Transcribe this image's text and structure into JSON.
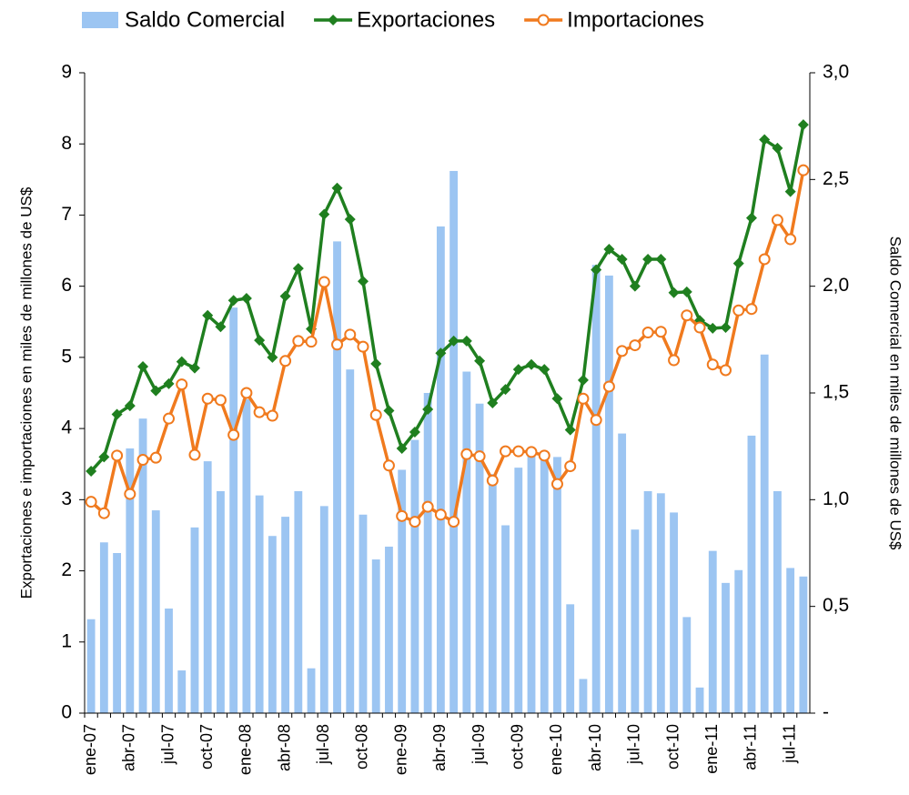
{
  "chart_data": {
    "type": "combo",
    "y_label": "Exportaciones e importaciones en miles de millones de US$",
    "y2_label": "Saldo Comercial en miles de millones de US$",
    "categories": [
      "ene-07",
      null,
      null,
      "abr-07",
      null,
      null,
      "jul-07",
      null,
      null,
      "oct-07",
      null,
      null,
      "ene-08",
      null,
      null,
      "abr-08",
      null,
      null,
      "jul-08",
      null,
      null,
      "oct-08",
      null,
      null,
      "ene-09",
      null,
      null,
      "abr-09",
      null,
      null,
      "jul-09",
      null,
      null,
      "oct-09",
      null,
      null,
      "ene-10",
      null,
      null,
      "abr-10",
      null,
      null,
      "jul-10",
      null,
      null,
      "oct-10",
      null,
      null,
      "ene-11",
      null,
      null,
      "abr-11",
      null,
      null,
      "jul-11",
      null
    ],
    "series": [
      {
        "name": "Saldo Comercial",
        "type": "bar",
        "axis": "y2",
        "color": "#9cc5f2",
        "values": [
          0.44,
          0.8,
          0.75,
          1.24,
          1.38,
          0.95,
          0.49,
          0.2,
          0.87,
          1.18,
          1.04,
          1.9,
          1.47,
          1.02,
          0.83,
          0.92,
          1.04,
          0.21,
          0.97,
          2.21,
          1.61,
          0.93,
          0.72,
          0.78,
          1.14,
          1.28,
          1.5,
          2.28,
          2.54,
          1.6,
          1.45,
          1.12,
          0.88,
          1.15,
          1.21,
          1.19,
          1.2,
          0.51,
          0.16,
          2.1,
          2.05,
          1.31,
          0.86,
          1.04,
          1.03,
          0.94,
          0.45,
          0.12,
          0.76,
          0.61,
          0.67,
          1.3,
          1.68,
          1.04,
          0.68,
          0.64
        ]
      },
      {
        "name": "Exportaciones",
        "type": "line",
        "marker": "diamond",
        "color": "#1f7f1f",
        "values": [
          3.4,
          3.6,
          4.2,
          4.32,
          4.87,
          4.53,
          4.63,
          4.94,
          4.85,
          5.59,
          5.43,
          5.8,
          5.83,
          5.24,
          5.0,
          5.86,
          6.25,
          5.4,
          7.01,
          7.38,
          6.94,
          6.07,
          4.91,
          4.25,
          3.72,
          3.95,
          4.27,
          5.06,
          5.23,
          5.23,
          4.95,
          4.36,
          4.55,
          4.83,
          4.9,
          4.83,
          4.42,
          3.98,
          4.68,
          6.23,
          6.52,
          6.38,
          6.0,
          6.38,
          6.38,
          5.91,
          5.92,
          5.52,
          5.41,
          5.42,
          6.32,
          6.96,
          8.06,
          7.94,
          7.33,
          8.27
        ]
      },
      {
        "name": "Importaciones",
        "type": "line",
        "marker": "circle",
        "color": "#f07a1e",
        "values": [
          2.97,
          2.81,
          3.62,
          3.08,
          3.56,
          3.59,
          4.14,
          4.62,
          3.63,
          4.42,
          4.4,
          3.91,
          4.5,
          4.23,
          4.18,
          4.95,
          5.23,
          5.22,
          6.06,
          5.18,
          5.32,
          5.15,
          4.19,
          3.48,
          2.77,
          2.69,
          2.9,
          2.79,
          2.69,
          3.64,
          3.61,
          3.27,
          3.68,
          3.68,
          3.67,
          3.62,
          3.22,
          3.47,
          4.42,
          4.12,
          4.59,
          5.09,
          5.17,
          5.35,
          5.36,
          4.96,
          5.59,
          5.42,
          4.9,
          4.82,
          5.66,
          5.68,
          6.38,
          6.93,
          6.66,
          7.63
        ]
      }
    ],
    "ylim": [
      0,
      9
    ],
    "yticks": [
      0,
      1,
      2,
      3,
      4,
      5,
      6,
      7,
      8,
      9
    ],
    "y2lim": [
      0,
      3
    ],
    "y2ticks": [
      {
        "value": 0,
        "label": "-"
      },
      {
        "value": 0.5,
        "label": "0,5"
      },
      {
        "value": 1,
        "label": "1,0"
      },
      {
        "value": 1.5,
        "label": "1,5"
      },
      {
        "value": 2,
        "label": "2,0"
      },
      {
        "value": 2.5,
        "label": "2,5"
      },
      {
        "value": 3,
        "label": "3,0"
      }
    ],
    "legend": "top"
  }
}
